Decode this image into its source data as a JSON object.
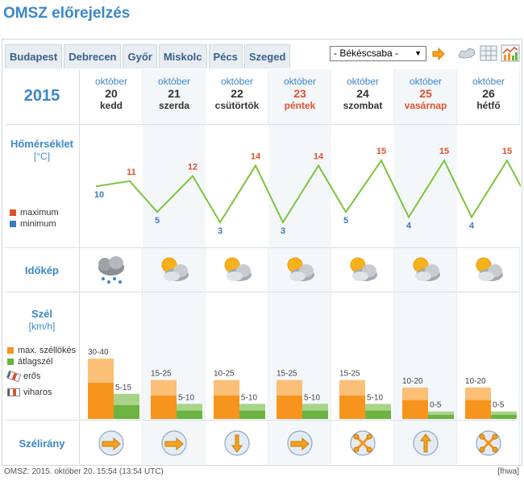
{
  "title": "OMSZ előrejelzés",
  "tabs": [
    "Budapest",
    "Debrecen",
    "Győr",
    "Miskolc",
    "Pécs",
    "Szeged"
  ],
  "city_select": {
    "value": "- Békéscsaba -"
  },
  "year": "2015",
  "days": [
    {
      "month": "október",
      "day": "20",
      "weekday": "kedd",
      "highlight": false,
      "max": 11,
      "min": 10,
      "weather": "rain-cloud-icon",
      "gust_range": "30-40",
      "gust_level": 0.48,
      "avg_range": "5-15",
      "avg_level": 0.2,
      "dir": "east"
    },
    {
      "month": "október",
      "day": "21",
      "weekday": "szerda",
      "highlight": false,
      "max": 12,
      "min": 5,
      "weather": "sun-cloud-icon",
      "gust_range": "15-25",
      "gust_level": 0.31,
      "avg_range": "5-10",
      "avg_level": 0.12,
      "dir": "east"
    },
    {
      "month": "október",
      "day": "22",
      "weekday": "csütörtök",
      "highlight": false,
      "max": 14,
      "min": 3,
      "weather": "sun-cloud-icon",
      "gust_range": "10-25",
      "gust_level": 0.31,
      "avg_range": "5-10",
      "avg_level": 0.12,
      "dir": "north-south"
    },
    {
      "month": "október",
      "day": "23",
      "weekday": "péntek",
      "highlight": true,
      "max": 14,
      "min": 3,
      "weather": "sun-cloud-icon",
      "gust_range": "15-25",
      "gust_level": 0.31,
      "avg_range": "5-10",
      "avg_level": 0.12,
      "dir": "east"
    },
    {
      "month": "október",
      "day": "24",
      "weekday": "szombat",
      "highlight": false,
      "max": 15,
      "min": 5,
      "weather": "sun-cloud-icon",
      "gust_range": "15-25",
      "gust_level": 0.31,
      "avg_range": "5-10",
      "avg_level": 0.12,
      "dir": "variable"
    },
    {
      "month": "október",
      "day": "25",
      "weekday": "vasárnap",
      "highlight": true,
      "max": 15,
      "min": 4,
      "weather": "sun-cloud-icon",
      "gust_range": "10-20",
      "gust_level": 0.25,
      "avg_range": "0-5",
      "avg_level": 0.06,
      "dir": "north"
    },
    {
      "month": "október",
      "day": "26",
      "weekday": "hétfő",
      "highlight": false,
      "max": 15,
      "min": 4,
      "weather": "sun-cloud-icon",
      "gust_range": "10-20",
      "gust_level": 0.25,
      "avg_range": "0-5",
      "avg_level": 0.06,
      "dir": "variable"
    }
  ],
  "rows": {
    "temp_label": "Hőmérséklet",
    "temp_unit": "[°C]",
    "legend_max": "maximum",
    "legend_min": "minimum",
    "weather_label": "Időkép",
    "wind_label": "Szél",
    "wind_unit": "[km/h]",
    "legend_gust": "max. széllökés",
    "legend_avg": "átlagszél",
    "legend_strong": "erős",
    "legend_storm": "viharos",
    "dir_label": "Szélirány"
  },
  "colors": {
    "accent": "#3a87c8",
    "max": "#e0502a",
    "min": "#3a7abf",
    "line": "#7cc43c",
    "gust": "#f7941d",
    "gust_light": "#fbbf78",
    "avg": "#6cb33f",
    "avg_light": "#a8d489"
  },
  "footer": "OMSZ: 2015. október 20. 15:54 (13:54  UTC)",
  "footer_right": "[fhwa]"
}
